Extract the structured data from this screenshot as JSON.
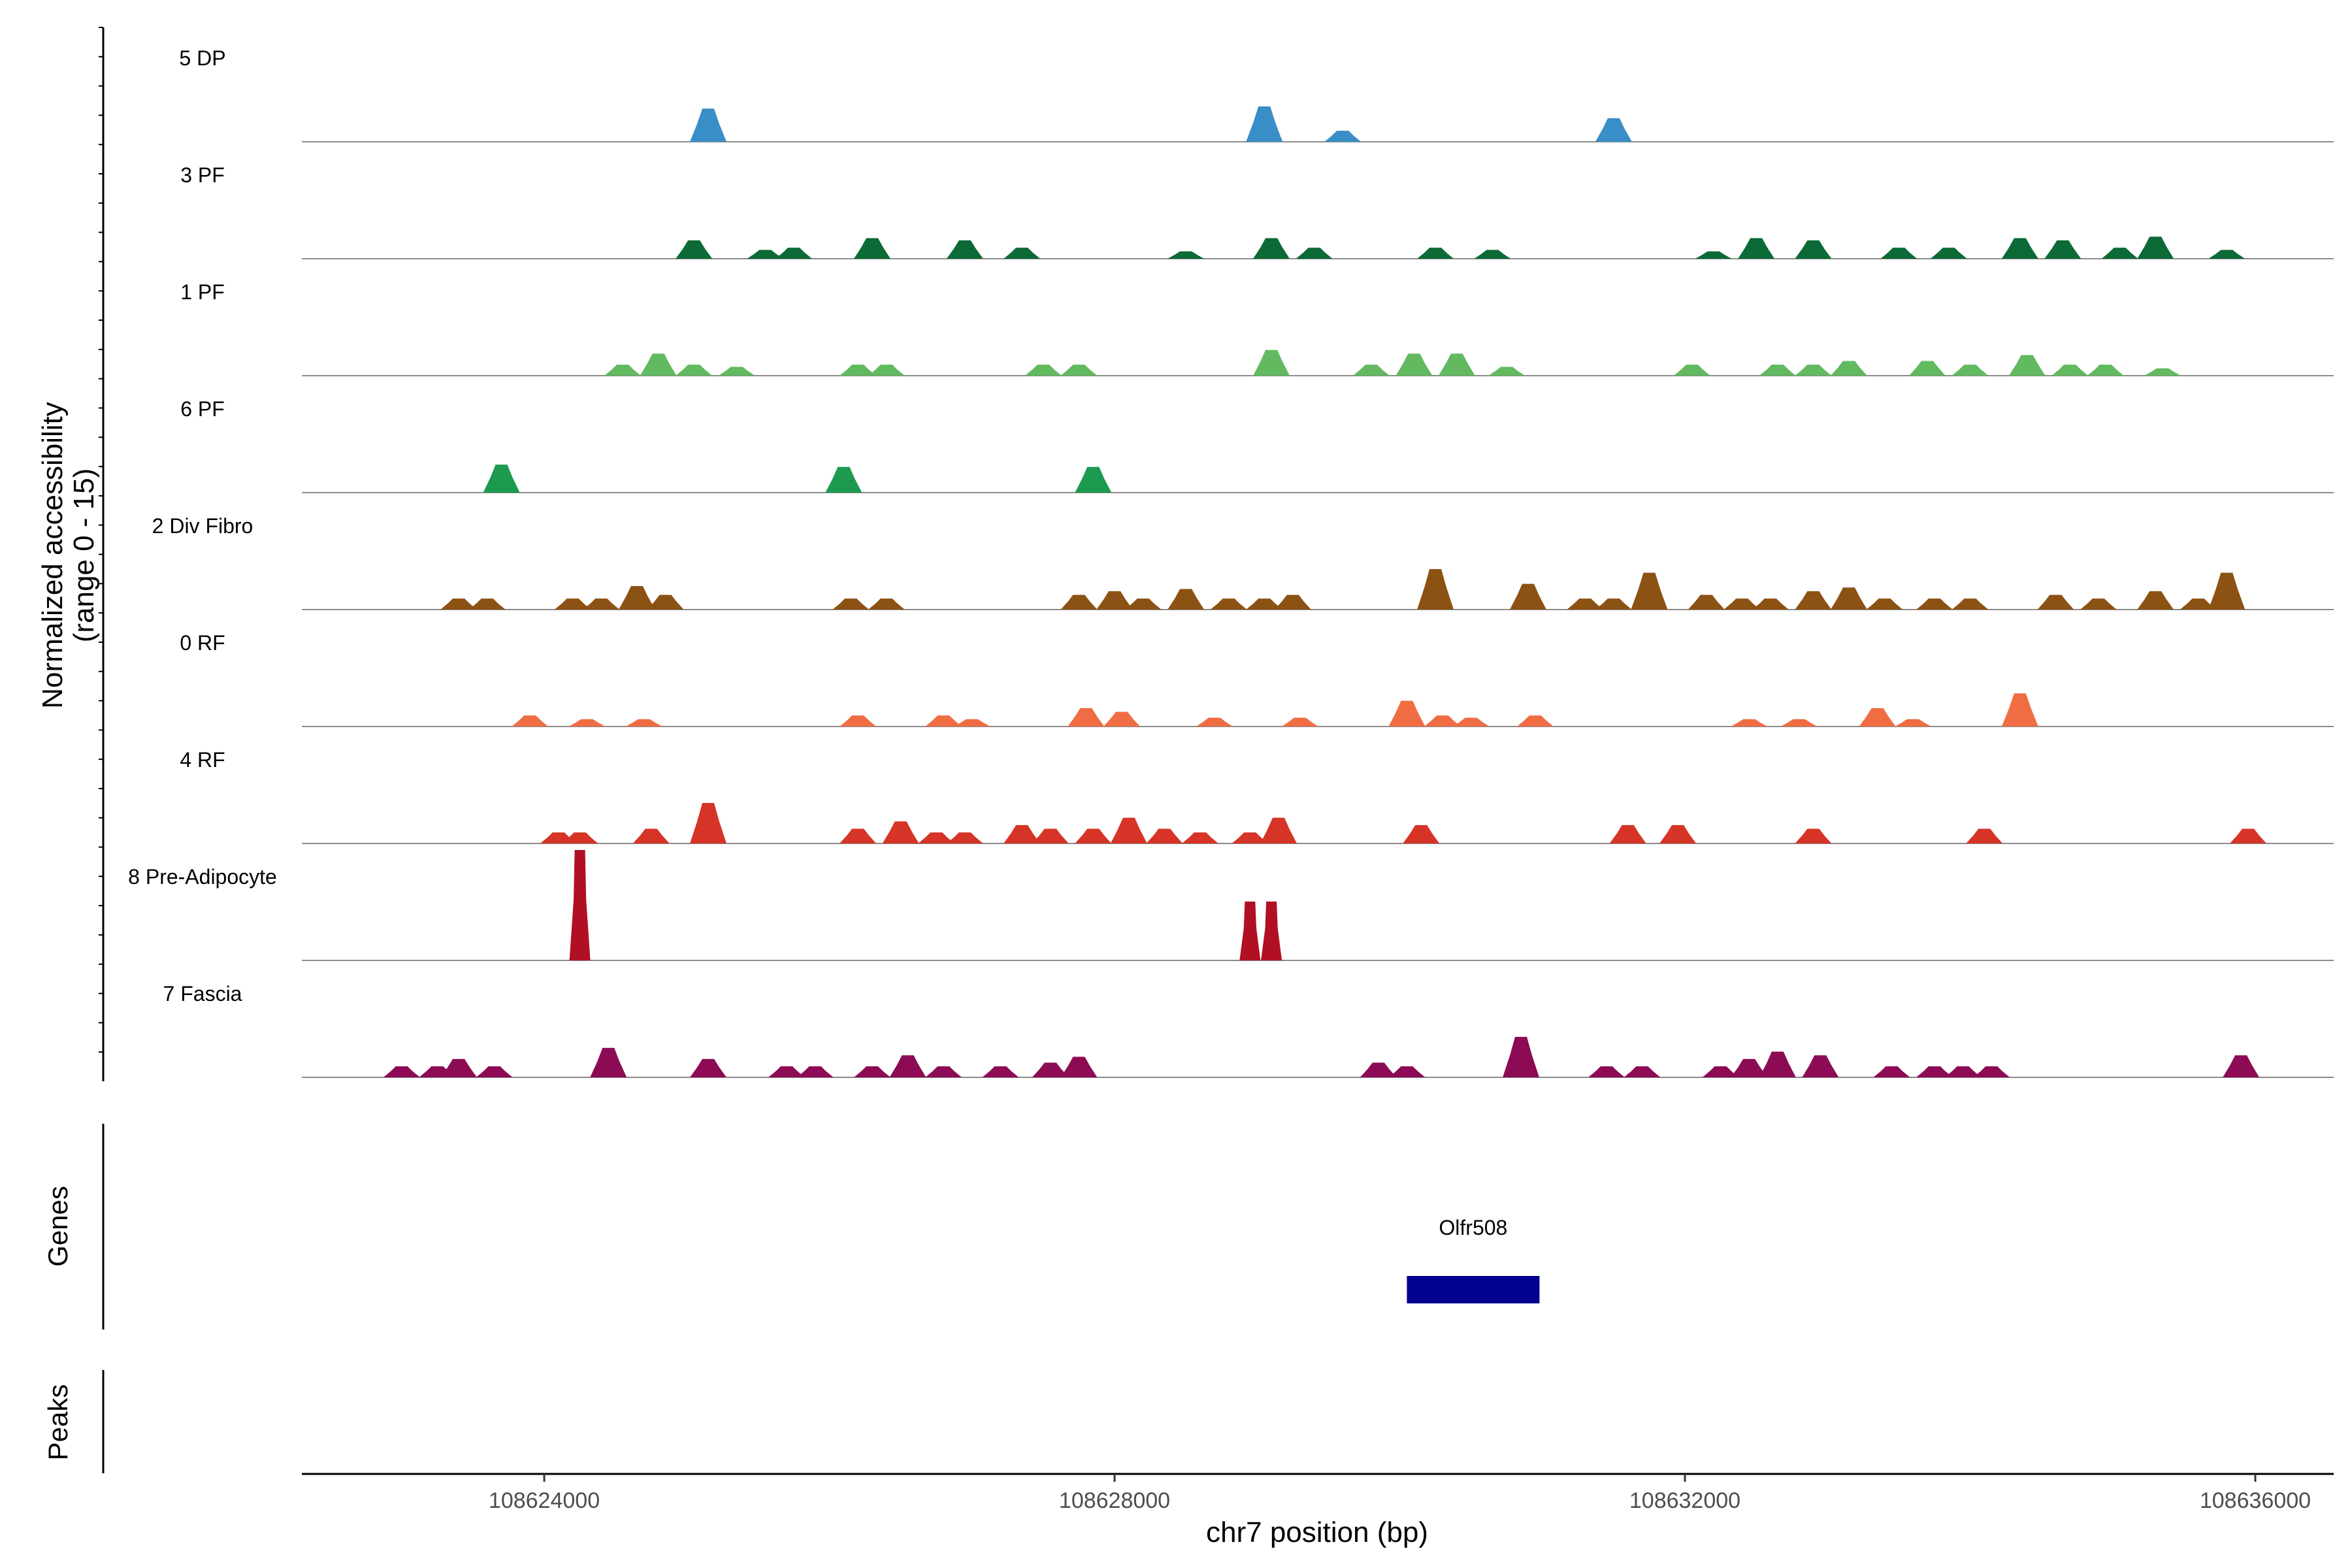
{
  "chart_data": {
    "type": "area",
    "title": "",
    "ylabel": "Normalized accessibility\n(range 0 - 15)",
    "xlabel": "chr7 position (bp)",
    "xlim": [
      108622300,
      108636550
    ],
    "ylim": [
      0,
      15
    ],
    "x_ticks": [
      108624000,
      108628000,
      108632000,
      108636000
    ],
    "x_tick_labels": [
      "108624000",
      "108628000",
      "108632000",
      "108636000"
    ],
    "series": [
      {
        "name": "5 DP",
        "color": "#3a8ec7",
        "peaks": [
          [
            108625150,
            4.5
          ],
          [
            108629050,
            4.8
          ],
          [
            108629600,
            1.5
          ],
          [
            108631500,
            3.2
          ]
        ]
      },
      {
        "name": "3 PF",
        "color": "#0b6a35",
        "peaks": [
          [
            108625050,
            2.5
          ],
          [
            108625550,
            1.2
          ],
          [
            108625750,
            1.5
          ],
          [
            108626300,
            2.8
          ],
          [
            108626950,
            2.5
          ],
          [
            108627350,
            1.5
          ],
          [
            108628500,
            1.0
          ],
          [
            108629100,
            2.8
          ],
          [
            108629400,
            1.5
          ],
          [
            108630250,
            1.5
          ],
          [
            108630650,
            1.2
          ],
          [
            108632200,
            1.0
          ],
          [
            108632500,
            2.8
          ],
          [
            108632900,
            2.5
          ],
          [
            108633500,
            1.5
          ],
          [
            108633850,
            1.5
          ],
          [
            108634350,
            2.8
          ],
          [
            108634650,
            2.5
          ],
          [
            108635050,
            1.5
          ],
          [
            108635300,
            3.0
          ],
          [
            108635800,
            1.2
          ]
        ]
      },
      {
        "name": "1 PF",
        "color": "#62b960",
        "peaks": [
          [
            108624550,
            1.5
          ],
          [
            108624800,
            3.0
          ],
          [
            108625050,
            1.5
          ],
          [
            108625350,
            1.2
          ],
          [
            108626200,
            1.5
          ],
          [
            108626400,
            1.5
          ],
          [
            108627500,
            1.5
          ],
          [
            108627750,
            1.5
          ],
          [
            108629100,
            3.5
          ],
          [
            108629800,
            1.5
          ],
          [
            108630100,
            3.0
          ],
          [
            108630400,
            3.0
          ],
          [
            108630750,
            1.2
          ],
          [
            108632050,
            1.5
          ],
          [
            108632650,
            1.5
          ],
          [
            108632900,
            1.5
          ],
          [
            108633150,
            2.0
          ],
          [
            108633700,
            2.0
          ],
          [
            108634000,
            1.5
          ],
          [
            108634400,
            2.8
          ],
          [
            108634700,
            1.5
          ],
          [
            108634950,
            1.5
          ],
          [
            108635350,
            1.0
          ]
        ]
      },
      {
        "name": "6 PF",
        "color": "#1c9a4f",
        "peaks": [
          [
            108623700,
            3.8
          ],
          [
            108626100,
            3.5
          ],
          [
            108627850,
            3.5
          ]
        ]
      },
      {
        "name": "2 Div Fibro",
        "color": "#8c5213",
        "peaks": [
          [
            108623400,
            1.5
          ],
          [
            108623600,
            1.5
          ],
          [
            108624200,
            1.5
          ],
          [
            108624400,
            1.5
          ],
          [
            108624650,
            3.2
          ],
          [
            108624850,
            2.0
          ],
          [
            108626150,
            1.5
          ],
          [
            108626400,
            1.5
          ],
          [
            108627750,
            2.0
          ],
          [
            108628000,
            2.5
          ],
          [
            108628200,
            1.5
          ],
          [
            108628500,
            2.8
          ],
          [
            108628800,
            1.5
          ],
          [
            108629050,
            1.5
          ],
          [
            108629250,
            2.0
          ],
          [
            108630250,
            5.5
          ],
          [
            108630900,
            3.5
          ],
          [
            108631300,
            1.5
          ],
          [
            108631500,
            1.5
          ],
          [
            108631750,
            5.0
          ],
          [
            108632150,
            2.0
          ],
          [
            108632400,
            1.5
          ],
          [
            108632600,
            1.5
          ],
          [
            108632900,
            2.5
          ],
          [
            108633150,
            3.0
          ],
          [
            108633400,
            1.5
          ],
          [
            108633750,
            1.5
          ],
          [
            108634000,
            1.5
          ],
          [
            108634600,
            2.0
          ],
          [
            108634900,
            1.5
          ],
          [
            108635300,
            2.5
          ],
          [
            108635600,
            1.5
          ],
          [
            108635800,
            5.0
          ]
        ]
      },
      {
        "name": "0 RF",
        "color": "#f06d43",
        "peaks": [
          [
            108623900,
            1.5
          ],
          [
            108624300,
            1.0
          ],
          [
            108624700,
            1.0
          ],
          [
            108626200,
            1.5
          ],
          [
            108626800,
            1.5
          ],
          [
            108627000,
            1.0
          ],
          [
            108627800,
            2.5
          ],
          [
            108628050,
            2.0
          ],
          [
            108628700,
            1.2
          ],
          [
            108629300,
            1.2
          ],
          [
            108630050,
            3.5
          ],
          [
            108630300,
            1.5
          ],
          [
            108630500,
            1.2
          ],
          [
            108630950,
            1.5
          ],
          [
            108632450,
            1.0
          ],
          [
            108632800,
            1.0
          ],
          [
            108633350,
            2.5
          ],
          [
            108633600,
            1.0
          ],
          [
            108634350,
            4.5
          ]
        ]
      },
      {
        "name": "4 RF",
        "color": "#d63427",
        "peaks": [
          [
            108624100,
            1.5
          ],
          [
            108624250,
            1.5
          ],
          [
            108624750,
            2.0
          ],
          [
            108625150,
            5.5
          ],
          [
            108626200,
            2.0
          ],
          [
            108626500,
            3.0
          ],
          [
            108626750,
            1.5
          ],
          [
            108626950,
            1.5
          ],
          [
            108627350,
            2.5
          ],
          [
            108627550,
            2.0
          ],
          [
            108627850,
            2.0
          ],
          [
            108628100,
            3.5
          ],
          [
            108628350,
            2.0
          ],
          [
            108628600,
            1.5
          ],
          [
            108628950,
            1.5
          ],
          [
            108629150,
            3.5
          ],
          [
            108630150,
            2.5
          ],
          [
            108631600,
            2.5
          ],
          [
            108631950,
            2.5
          ],
          [
            108632900,
            2.0
          ],
          [
            108634100,
            2.0
          ],
          [
            108635950,
            2.0
          ]
        ]
      },
      {
        "name": "8 Pre-Adipocyte",
        "color": "#b11024",
        "peaks": [
          [
            108624250,
            15.0
          ],
          [
            108628950,
            8.0
          ],
          [
            108629100,
            8.0
          ]
        ]
      },
      {
        "name": "7 Fascia",
        "color": "#8c0b54",
        "peaks": [
          [
            108623000,
            1.5
          ],
          [
            108623250,
            1.5
          ],
          [
            108623400,
            2.5
          ],
          [
            108623650,
            1.5
          ],
          [
            108624450,
            4.0
          ],
          [
            108625150,
            2.5
          ],
          [
            108625700,
            1.5
          ],
          [
            108625900,
            1.5
          ],
          [
            108626300,
            1.5
          ],
          [
            108626550,
            3.0
          ],
          [
            108626800,
            1.5
          ],
          [
            108627200,
            1.5
          ],
          [
            108627550,
            2.0
          ],
          [
            108627750,
            2.8
          ],
          [
            108629850,
            2.0
          ],
          [
            108630050,
            1.5
          ],
          [
            108630850,
            5.5
          ],
          [
            108631450,
            1.5
          ],
          [
            108631700,
            1.5
          ],
          [
            108632250,
            1.5
          ],
          [
            108632450,
            2.5
          ],
          [
            108632650,
            3.5
          ],
          [
            108632950,
            3.0
          ],
          [
            108633450,
            1.5
          ],
          [
            108633750,
            1.5
          ],
          [
            108633950,
            1.5
          ],
          [
            108634150,
            1.5
          ],
          [
            108635900,
            3.0
          ]
        ]
      }
    ],
    "genes": {
      "title": "Genes",
      "items": [
        {
          "name": "Olfr508",
          "start": 108630050,
          "end": 108630980,
          "color": "#010091"
        }
      ]
    },
    "peaks_track": {
      "title": "Peaks",
      "items": []
    },
    "grid": false,
    "legend": "none"
  }
}
